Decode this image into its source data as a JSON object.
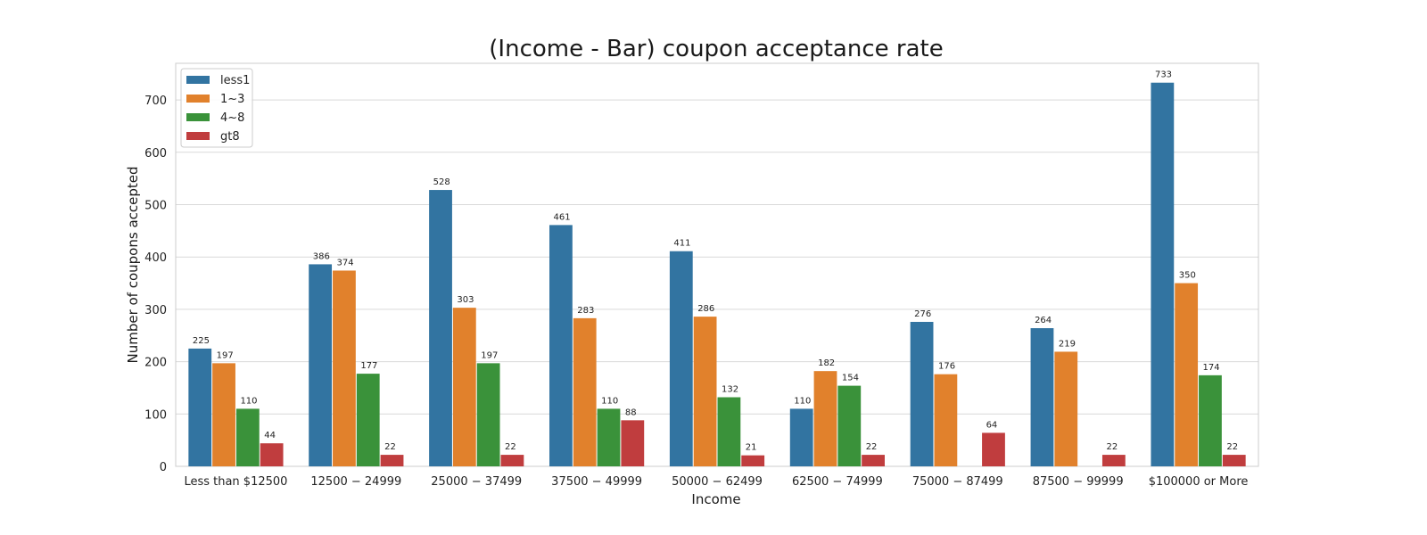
{
  "chart_data": {
    "type": "bar",
    "title": "(Income - Bar) coupon acceptance rate",
    "xlabel": "Income",
    "ylabel": "Number of coupons accepted",
    "categories": [
      "Less than $12500",
      "12500 − 24999",
      "25000 − 37499",
      "37500 − 49999",
      "50000 − 62499",
      "62500 − 74999",
      "75000 − 87499",
      "87500 − 99999",
      "$100000 or More"
    ],
    "series": [
      {
        "name": "less1",
        "color": "#3274a1",
        "values": [
          225,
          386,
          528,
          461,
          411,
          110,
          276,
          264,
          733
        ]
      },
      {
        "name": "1~3",
        "color": "#e1812c",
        "values": [
          197,
          374,
          303,
          283,
          286,
          182,
          176,
          219,
          350
        ]
      },
      {
        "name": "4~8",
        "color": "#3a923a",
        "values": [
          110,
          177,
          197,
          110,
          132,
          154,
          null,
          null,
          174
        ]
      },
      {
        "name": "gt8",
        "color": "#c03d3e",
        "values": [
          44,
          22,
          22,
          88,
          21,
          22,
          64,
          22,
          22
        ]
      }
    ],
    "ylim": [
      0,
      770
    ],
    "yticks": [
      0,
      100,
      200,
      300,
      400,
      500,
      600,
      700
    ],
    "grid": true,
    "legend": "top-left"
  }
}
